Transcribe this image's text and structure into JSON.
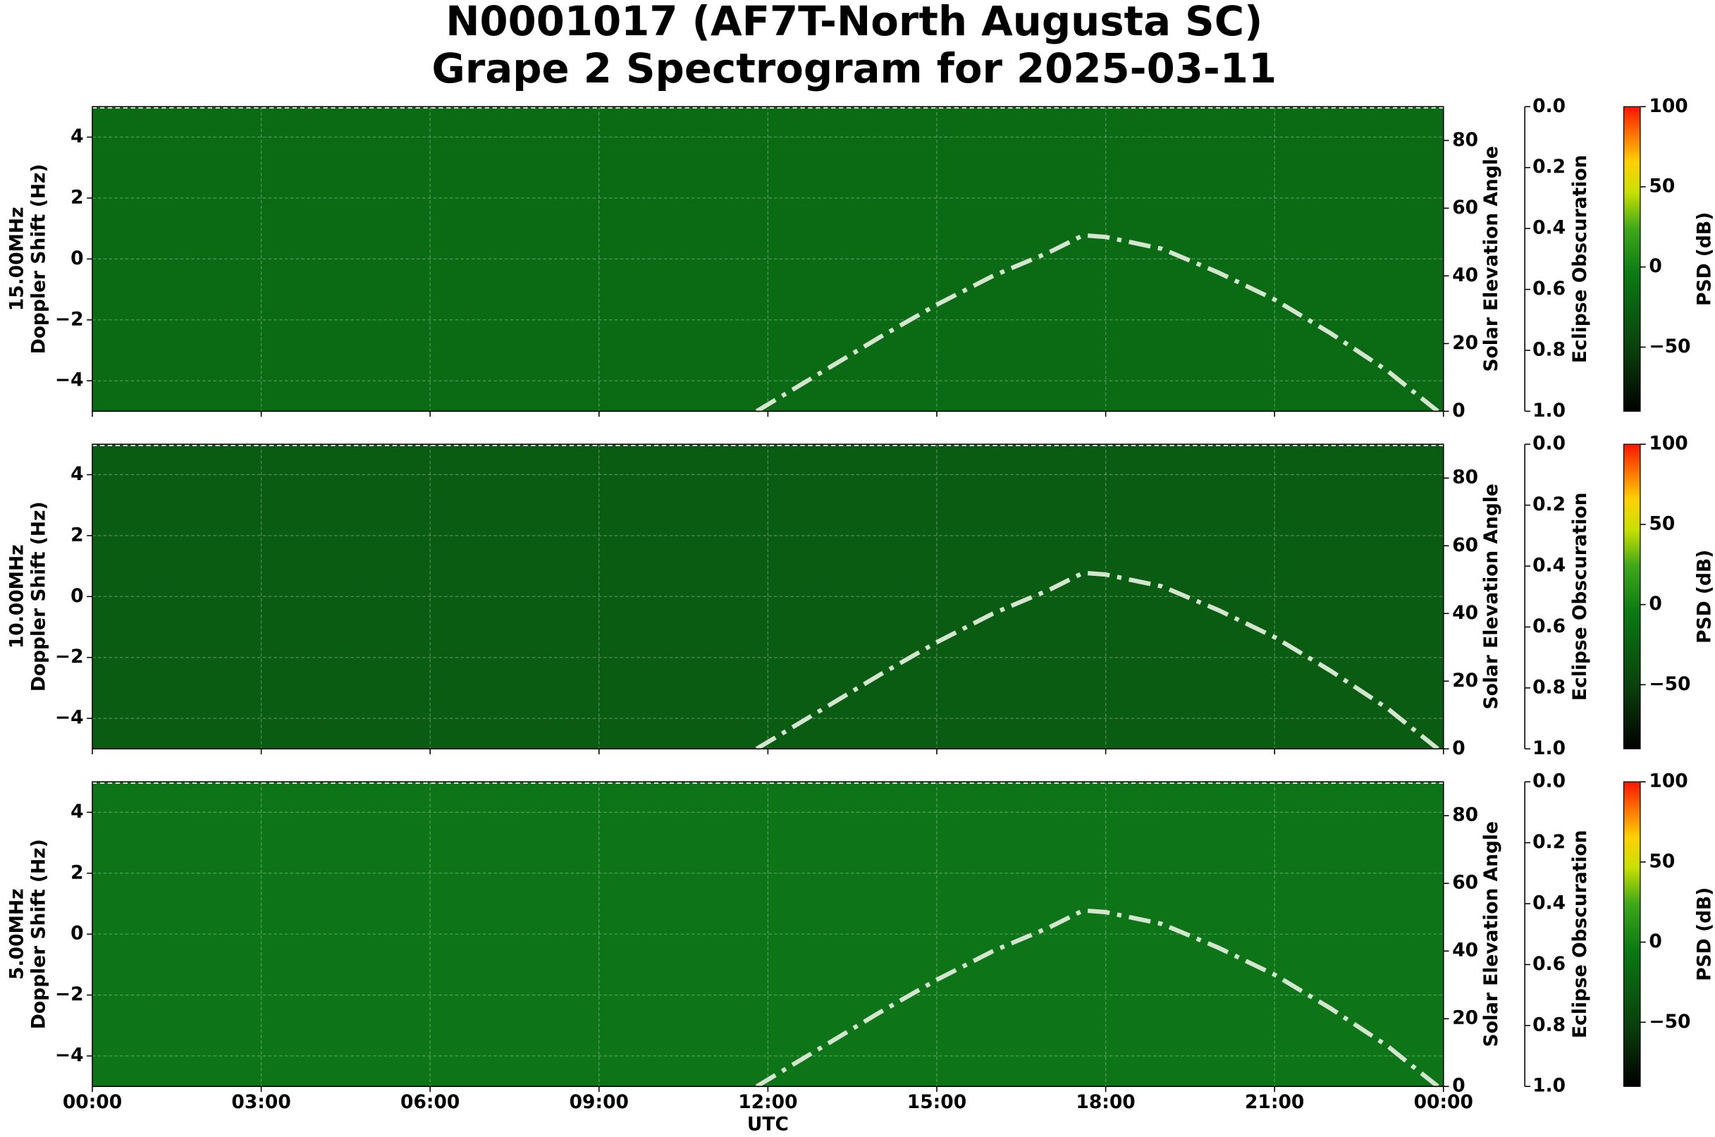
{
  "title": [
    "N0001017 (AF7T-North Augusta SC)",
    "Grape 2 Spectrogram for 2025-03-11"
  ],
  "chart_data": [
    {
      "type": "spectrogram",
      "band": "15.00MHz",
      "ylabel": "Doppler Shift (Hz)",
      "y2label": "Solar Elevation Angle",
      "y3label": "Eclipse Obscuration",
      "colorbar_label": "PSD (dB)",
      "color": "#0b6a14",
      "grid": true,
      "xlim": [
        0,
        24
      ],
      "xticks": [
        0,
        3,
        6,
        9,
        12,
        15,
        18,
        21,
        24
      ],
      "ylim": [
        -5,
        5
      ],
      "yticks": [
        {
          "value": -4,
          "label": "−4"
        },
        {
          "value": -2,
          "label": "−2"
        },
        0,
        2,
        4
      ],
      "y2lim": [
        0,
        90
      ],
      "y2ticks": [
        0,
        20,
        40,
        60,
        80
      ],
      "y3lim": [
        1,
        0
      ],
      "y3ticks": [
        {
          "value": 0,
          "label": "0.0"
        },
        {
          "value": 0.2,
          "label": "0.2"
        },
        {
          "value": 0.4,
          "label": "0.4"
        },
        {
          "value": 0.6,
          "label": "0.6"
        },
        {
          "value": 0.8,
          "label": "0.8"
        },
        {
          "value": 1,
          "label": "1.0"
        }
      ],
      "clim": [
        -90,
        100
      ],
      "cticks": [
        {
          "value": -50,
          "label": "−50"
        },
        0,
        50,
        100
      ],
      "elevation": {
        "x": [
          11.8,
          12,
          13,
          14,
          15,
          16,
          17,
          17.6,
          18,
          19,
          20,
          21,
          22,
          23,
          23.9
        ],
        "values": [
          0,
          2,
          12,
          22,
          31.5,
          40,
          47,
          52,
          51.5,
          48,
          41,
          33,
          23,
          12,
          0
        ]
      },
      "obscuration": {
        "x": [
          0,
          24
        ],
        "values": [
          0,
          0
        ]
      }
    },
    {
      "type": "spectrogram",
      "band": "10.00MHz",
      "ylabel": "Doppler Shift (Hz)",
      "y2label": "Solar Elevation Angle",
      "y3label": "Eclipse Obscuration",
      "colorbar_label": "PSD (dB)",
      "color": "#0a5c12",
      "grid": true,
      "xlim": [
        0,
        24
      ],
      "xticks": [
        0,
        3,
        6,
        9,
        12,
        15,
        18,
        21,
        24
      ],
      "ylim": [
        -5,
        5
      ],
      "yticks": [
        {
          "value": -4,
          "label": "−4"
        },
        {
          "value": -2,
          "label": "−2"
        },
        0,
        2,
        4
      ],
      "y2lim": [
        0,
        90
      ],
      "y2ticks": [
        0,
        20,
        40,
        60,
        80
      ],
      "y3lim": [
        1,
        0
      ],
      "y3ticks": [
        {
          "value": 0,
          "label": "0.0"
        },
        {
          "value": 0.2,
          "label": "0.2"
        },
        {
          "value": 0.4,
          "label": "0.4"
        },
        {
          "value": 0.6,
          "label": "0.6"
        },
        {
          "value": 0.8,
          "label": "0.8"
        },
        {
          "value": 1,
          "label": "1.0"
        }
      ],
      "clim": [
        -90,
        100
      ],
      "cticks": [
        {
          "value": -50,
          "label": "−50"
        },
        0,
        50,
        100
      ],
      "elevation": {
        "x": [
          11.8,
          12,
          13,
          14,
          15,
          16,
          17,
          17.6,
          18,
          19,
          20,
          21,
          22,
          23,
          23.9
        ],
        "values": [
          0,
          2,
          12,
          22,
          31.5,
          40,
          47,
          52,
          51.5,
          48,
          41,
          33,
          23,
          12,
          0
        ]
      },
      "obscuration": {
        "x": [
          0,
          24
        ],
        "values": [
          0,
          0
        ]
      }
    },
    {
      "type": "spectrogram",
      "band": "5.00MHz",
      "ylabel": "Doppler Shift (Hz)",
      "y2label": "Solar Elevation Angle",
      "y3label": "Eclipse Obscuration",
      "colorbar_label": "PSD (dB)",
      "color": "#0d7418",
      "grid": true,
      "xlim": [
        0,
        24
      ],
      "xlabel": "UTC",
      "xticks": [
        {
          "value": 0,
          "label": "00:00"
        },
        {
          "value": 3,
          "label": "03:00"
        },
        {
          "value": 6,
          "label": "06:00"
        },
        {
          "value": 9,
          "label": "09:00"
        },
        {
          "value": 12,
          "label": "12:00"
        },
        {
          "value": 15,
          "label": "15:00"
        },
        {
          "value": 18,
          "label": "18:00"
        },
        {
          "value": 21,
          "label": "21:00"
        },
        {
          "value": 24,
          "label": "00:00"
        }
      ],
      "ylim": [
        -5,
        5
      ],
      "yticks": [
        {
          "value": -4,
          "label": "−4"
        },
        {
          "value": -2,
          "label": "−2"
        },
        0,
        2,
        4
      ],
      "y2lim": [
        0,
        90
      ],
      "y2ticks": [
        0,
        20,
        40,
        60,
        80
      ],
      "y3lim": [
        1,
        0
      ],
      "y3ticks": [
        {
          "value": 0,
          "label": "0.0"
        },
        {
          "value": 0.2,
          "label": "0.2"
        },
        {
          "value": 0.4,
          "label": "0.4"
        },
        {
          "value": 0.6,
          "label": "0.6"
        },
        {
          "value": 0.8,
          "label": "0.8"
        },
        {
          "value": 1,
          "label": "1.0"
        }
      ],
      "clim": [
        -90,
        100
      ],
      "cticks": [
        {
          "value": -50,
          "label": "−50"
        },
        0,
        50,
        100
      ],
      "elevation": {
        "x": [
          11.8,
          12,
          13,
          14,
          15,
          16,
          17,
          17.6,
          18,
          19,
          20,
          21,
          22,
          23,
          23.9
        ],
        "values": [
          0,
          2,
          12,
          22,
          31.5,
          40,
          47,
          52,
          51.5,
          48,
          41,
          33,
          23,
          12,
          0
        ]
      },
      "obscuration": {
        "x": [
          0,
          24
        ],
        "values": [
          0,
          0
        ]
      }
    }
  ]
}
